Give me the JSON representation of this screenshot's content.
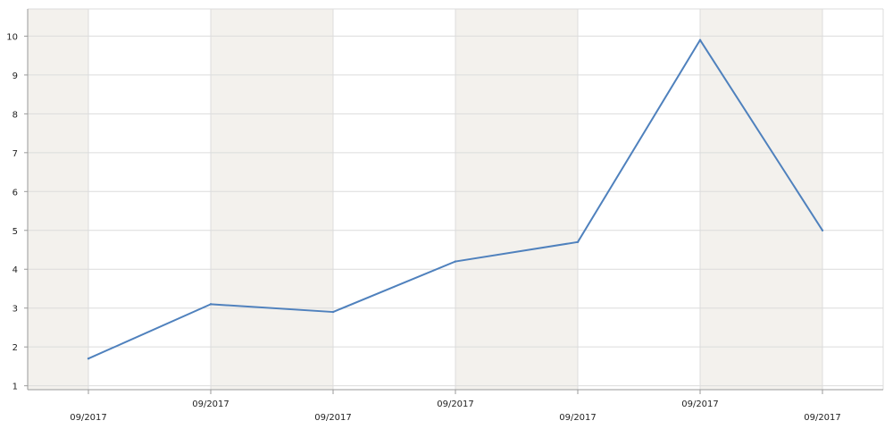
{
  "chart_data": {
    "type": "line",
    "title": "",
    "xlabel": "",
    "ylabel": "",
    "x": [
      "09/2017",
      "09/2017",
      "09/2017",
      "09/2017",
      "09/2017",
      "09/2017",
      "09/2017"
    ],
    "series": [
      {
        "values": [
          1.7,
          3.1,
          2.9,
          4.2,
          4.7,
          9.9,
          5.0
        ]
      }
    ],
    "ylim": [
      0.9,
      10.7
    ],
    "yticks": [
      1,
      2,
      3,
      4,
      5,
      6,
      7,
      8,
      9,
      10
    ],
    "grid": true,
    "legend": "none",
    "colors": {
      "line": "#4f81bd",
      "band": "#f3f1ed",
      "grid": "#dcdcdc",
      "axis": "#9a9a9a"
    }
  }
}
